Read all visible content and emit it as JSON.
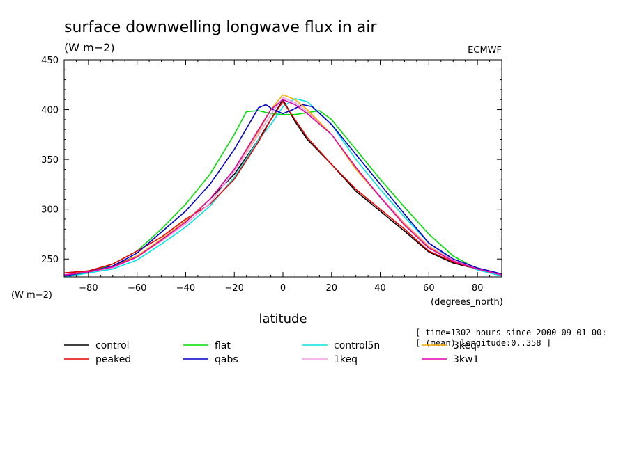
{
  "chart_data": {
    "type": "line",
    "title": "surface downwelling longwave flux in air",
    "units_label": "(W m−2)",
    "source_label": "ECMWF",
    "ylabel_left": "(W m−2)",
    "xunits_label": "(degrees_north)",
    "xlabel": "latitude",
    "info_line1": "[ time=1302 hours since 2000-09-01 00:",
    "info_line2": "[ (mean) longitude:0..358 ]",
    "xlim": [
      -90,
      90
    ],
    "ylim": [
      232,
      450
    ],
    "xticks": [
      -80,
      -60,
      -40,
      -20,
      0,
      20,
      40,
      60,
      80
    ],
    "yticks": [
      250,
      300,
      350,
      400,
      450
    ],
    "grid": false,
    "legend_position": "bottom",
    "series": [
      {
        "name": "control",
        "color": "#000000",
        "points": [
          [
            -90,
            236
          ],
          [
            -80,
            238
          ],
          [
            -70,
            243
          ],
          [
            -60,
            253
          ],
          [
            -50,
            268
          ],
          [
            -40,
            288
          ],
          [
            -30,
            310
          ],
          [
            -20,
            335
          ],
          [
            -10,
            370
          ],
          [
            -5,
            390
          ],
          [
            0,
            410
          ],
          [
            5,
            388
          ],
          [
            10,
            370
          ],
          [
            20,
            345
          ],
          [
            30,
            318
          ],
          [
            40,
            298
          ],
          [
            50,
            278
          ],
          [
            60,
            257
          ],
          [
            70,
            246
          ],
          [
            80,
            240
          ],
          [
            90,
            234
          ]
        ]
      },
      {
        "name": "flat",
        "color": "#00dd00",
        "points": [
          [
            -90,
            232
          ],
          [
            -80,
            236
          ],
          [
            -70,
            245
          ],
          [
            -60,
            258
          ],
          [
            -50,
            280
          ],
          [
            -40,
            305
          ],
          [
            -30,
            335
          ],
          [
            -20,
            375
          ],
          [
            -15,
            398
          ],
          [
            -10,
            399
          ],
          [
            -5,
            396
          ],
          [
            0,
            395
          ],
          [
            5,
            395
          ],
          [
            10,
            397
          ],
          [
            15,
            399
          ],
          [
            20,
            390
          ],
          [
            30,
            360
          ],
          [
            40,
            330
          ],
          [
            50,
            302
          ],
          [
            60,
            275
          ],
          [
            70,
            253
          ],
          [
            80,
            240
          ],
          [
            90,
            233
          ]
        ]
      },
      {
        "name": "control5n",
        "color": "#00e4e4",
        "points": [
          [
            -90,
            232
          ],
          [
            -80,
            236
          ],
          [
            -70,
            240
          ],
          [
            -60,
            249
          ],
          [
            -50,
            265
          ],
          [
            -40,
            282
          ],
          [
            -30,
            303
          ],
          [
            -20,
            332
          ],
          [
            -10,
            370
          ],
          [
            -5,
            385
          ],
          [
            0,
            403
          ],
          [
            5,
            411
          ],
          [
            10,
            408
          ],
          [
            20,
            385
          ],
          [
            30,
            350
          ],
          [
            40,
            320
          ],
          [
            50,
            292
          ],
          [
            60,
            266
          ],
          [
            70,
            249
          ],
          [
            80,
            239
          ],
          [
            90,
            233
          ]
        ]
      },
      {
        "name": "peaked",
        "color": "#e60000",
        "points": [
          [
            -90,
            236
          ],
          [
            -80,
            238
          ],
          [
            -70,
            245
          ],
          [
            -60,
            258
          ],
          [
            -50,
            272
          ],
          [
            -40,
            290
          ],
          [
            -30,
            305
          ],
          [
            -20,
            330
          ],
          [
            -10,
            368
          ],
          [
            -5,
            390
          ],
          [
            0,
            408
          ],
          [
            5,
            390
          ],
          [
            10,
            372
          ],
          [
            20,
            345
          ],
          [
            30,
            320
          ],
          [
            40,
            300
          ],
          [
            50,
            280
          ],
          [
            60,
            258
          ],
          [
            70,
            247
          ],
          [
            80,
            240
          ],
          [
            90,
            234
          ]
        ]
      },
      {
        "name": "qabs",
        "color": "#0000cc",
        "points": [
          [
            -90,
            233
          ],
          [
            -80,
            237
          ],
          [
            -70,
            243
          ],
          [
            -60,
            256
          ],
          [
            -50,
            277
          ],
          [
            -40,
            298
          ],
          [
            -30,
            325
          ],
          [
            -20,
            360
          ],
          [
            -10,
            402
          ],
          [
            -7,
            405
          ],
          [
            -4,
            400
          ],
          [
            0,
            396
          ],
          [
            4,
            400
          ],
          [
            8,
            405
          ],
          [
            12,
            403
          ],
          [
            20,
            385
          ],
          [
            30,
            355
          ],
          [
            40,
            325
          ],
          [
            50,
            295
          ],
          [
            60,
            266
          ],
          [
            70,
            250
          ],
          [
            80,
            241
          ],
          [
            90,
            235
          ]
        ]
      },
      {
        "name": "1keq",
        "color": "#f0a0e0",
        "points": [
          [
            -90,
            234
          ],
          [
            -80,
            237
          ],
          [
            -70,
            241
          ],
          [
            -60,
            252
          ],
          [
            -50,
            268
          ],
          [
            -40,
            285
          ],
          [
            -30,
            306
          ],
          [
            -20,
            338
          ],
          [
            -10,
            375
          ],
          [
            -5,
            395
          ],
          [
            0,
            412
          ],
          [
            5,
            407
          ],
          [
            10,
            398
          ],
          [
            20,
            375
          ],
          [
            30,
            340
          ],
          [
            40,
            313
          ],
          [
            50,
            286
          ],
          [
            60,
            263
          ],
          [
            70,
            249
          ],
          [
            80,
            240
          ],
          [
            90,
            234
          ]
        ]
      },
      {
        "name": "3keq",
        "color": "#ffaa00",
        "points": [
          [
            -90,
            234
          ],
          [
            -80,
            237
          ],
          [
            -70,
            242
          ],
          [
            -60,
            253
          ],
          [
            -50,
            270
          ],
          [
            -40,
            288
          ],
          [
            -30,
            310
          ],
          [
            -20,
            340
          ],
          [
            -10,
            378
          ],
          [
            -5,
            400
          ],
          [
            0,
            415
          ],
          [
            5,
            410
          ],
          [
            10,
            400
          ],
          [
            20,
            375
          ],
          [
            30,
            340
          ],
          [
            40,
            312
          ],
          [
            50,
            285
          ],
          [
            60,
            262
          ],
          [
            70,
            248
          ],
          [
            80,
            240
          ],
          [
            90,
            234
          ]
        ]
      },
      {
        "name": "3kw1",
        "color": "#e000b0",
        "points": [
          [
            -90,
            234
          ],
          [
            -80,
            237
          ],
          [
            -70,
            242
          ],
          [
            -60,
            252
          ],
          [
            -50,
            269
          ],
          [
            -40,
            287
          ],
          [
            -30,
            310
          ],
          [
            -20,
            340
          ],
          [
            -10,
            380
          ],
          [
            -5,
            400
          ],
          [
            0,
            410
          ],
          [
            5,
            405
          ],
          [
            10,
            396
          ],
          [
            20,
            375
          ],
          [
            30,
            342
          ],
          [
            40,
            312
          ],
          [
            50,
            284
          ],
          [
            60,
            261
          ],
          [
            70,
            248
          ],
          [
            80,
            240
          ],
          [
            90,
            234
          ]
        ]
      }
    ]
  }
}
